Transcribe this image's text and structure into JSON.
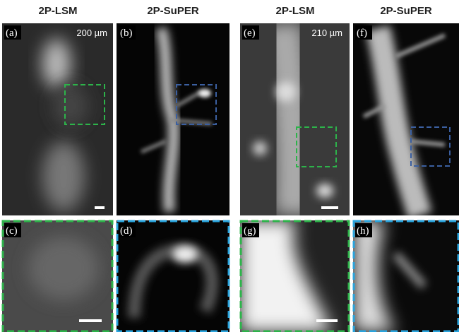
{
  "headers": [
    "2P-LSM",
    "2P-SuPER",
    "2P-LSM",
    "2P-SuPER"
  ],
  "panels": [
    {
      "label": "(a)",
      "depth": "200 µm"
    },
    {
      "label": "(b)"
    },
    {
      "label": "(e)",
      "depth": "210 µm"
    },
    {
      "label": "(f)"
    },
    {
      "label": "(c)"
    },
    {
      "label": "(d)"
    },
    {
      "label": "(g)"
    },
    {
      "label": "(h)"
    }
  ]
}
